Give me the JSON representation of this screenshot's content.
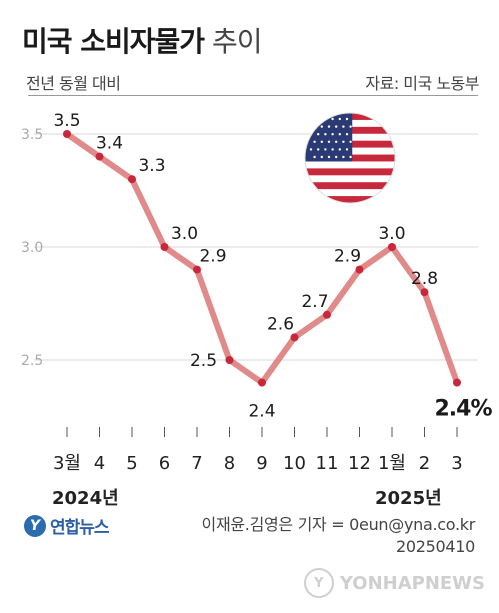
{
  "header": {
    "title_main": "미국 소비자물가",
    "title_sub": "추이",
    "subtitle": "전년 동월 대비",
    "source": "자료: 미국 노동부"
  },
  "chart_data": {
    "type": "line",
    "x": [
      "3월",
      "4",
      "5",
      "6",
      "7",
      "8",
      "9",
      "10",
      "11",
      "12",
      "1월",
      "2",
      "3"
    ],
    "values": [
      3.5,
      3.4,
      3.3,
      3.0,
      2.9,
      2.5,
      2.4,
      2.6,
      2.7,
      2.9,
      3.0,
      2.8,
      2.4
    ],
    "value_labels": [
      "3.5",
      "3.4",
      "3.3",
      "3.0",
      "2.9",
      "2.5",
      "2.4",
      "2.6",
      "2.7",
      "2.9",
      "3.0",
      "2.8",
      "2.4%"
    ],
    "yticks": [
      "3.5",
      "3.0",
      "2.5"
    ],
    "year_labels": [
      "2024년",
      "2025년"
    ],
    "ylim": [
      2.25,
      3.6
    ],
    "line_color": "#e08a8a",
    "marker_color": "#c8283c",
    "grid": true
  },
  "footer": {
    "logo_text": "연합뉴스",
    "credit": "이재윤.김영은 기자 = 0eun@yna.co.kr",
    "date": "20250410",
    "watermark": "YONHAPNEWS"
  }
}
